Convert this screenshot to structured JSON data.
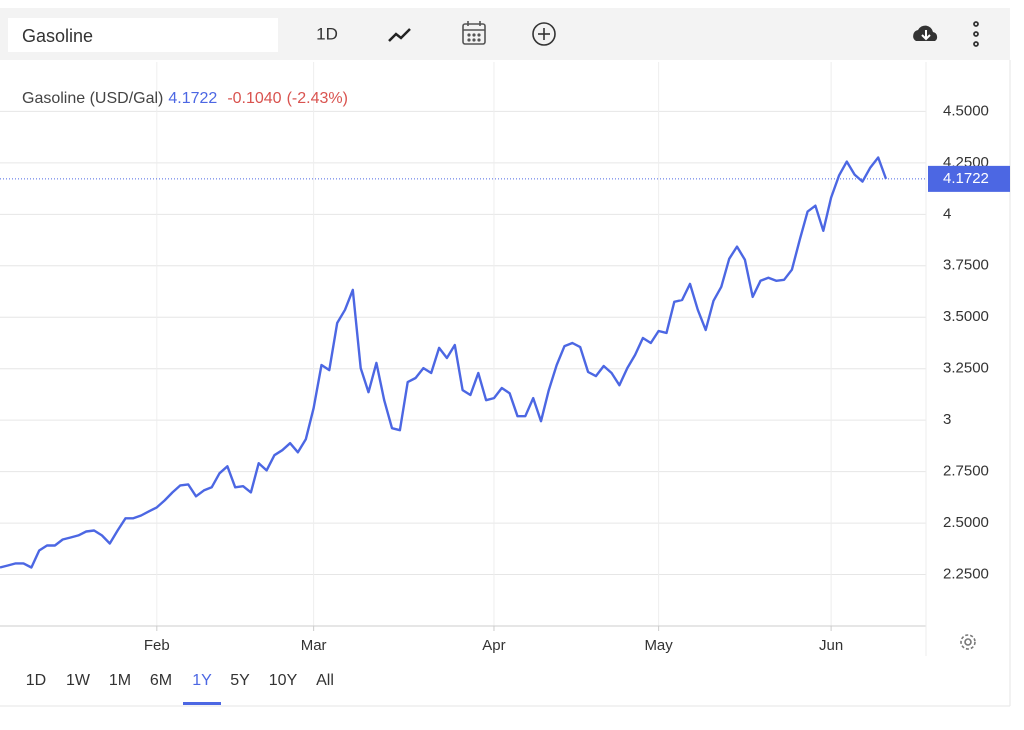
{
  "toolbar": {
    "symbol": "Gasoline",
    "interval": "1D"
  },
  "chart_data": {
    "type": "line",
    "legend_name": "Gasoline (USD/Gal)",
    "last_price": 4.1722,
    "change": {
      "value": -0.104,
      "label": "-0.1040"
    },
    "change_percent": {
      "value": -2.43,
      "label": "(-2.43%)"
    },
    "categories": [
      null,
      null,
      null,
      null,
      null,
      null,
      null,
      null,
      null,
      null,
      null,
      null,
      null,
      null,
      null,
      null,
      null,
      null,
      null,
      null,
      "Feb",
      null,
      null,
      null,
      null,
      null,
      null,
      null,
      null,
      null,
      null,
      null,
      null,
      null,
      null,
      null,
      null,
      null,
      null,
      null,
      "Mar",
      null,
      null,
      null,
      null,
      null,
      null,
      null,
      null,
      null,
      null,
      null,
      null,
      null,
      null,
      null,
      null,
      null,
      null,
      null,
      null,
      null,
      null,
      "Apr",
      null,
      null,
      null,
      null,
      null,
      null,
      null,
      null,
      null,
      null,
      null,
      null,
      null,
      null,
      null,
      null,
      null,
      null,
      null,
      null,
      "May",
      null,
      null,
      null,
      null,
      null,
      null,
      null,
      null,
      null,
      null,
      null,
      null,
      null,
      null,
      null,
      null,
      null,
      null,
      null,
      null,
      null,
      "Jun",
      null,
      null,
      null,
      null,
      null,
      null,
      null
    ],
    "series": [
      {
        "name": "Gasoline (USD/Gal)",
        "color": "#4c67e3",
        "values": [
          2.284,
          2.294,
          2.304,
          2.304,
          2.284,
          2.367,
          2.391,
          2.391,
          2.42,
          2.43,
          2.44,
          2.459,
          2.464,
          2.44,
          2.401,
          2.464,
          2.523,
          2.523,
          2.537,
          2.557,
          2.576,
          2.61,
          2.649,
          2.683,
          2.688,
          2.63,
          2.659,
          2.674,
          2.742,
          2.776,
          2.674,
          2.679,
          2.649,
          2.791,
          2.756,
          2.83,
          2.854,
          2.888,
          2.844,
          2.907,
          3.058,
          3.268,
          3.243,
          3.472,
          3.536,
          3.633,
          3.253,
          3.136,
          3.278,
          3.097,
          2.961,
          2.951,
          3.185,
          3.205,
          3.253,
          3.229,
          3.351,
          3.302,
          3.365,
          3.146,
          3.122,
          3.229,
          3.097,
          3.107,
          3.156,
          3.131,
          3.019,
          3.019,
          3.107,
          2.995,
          3.146,
          3.268,
          3.36,
          3.375,
          3.355,
          3.234,
          3.214,
          3.263,
          3.229,
          3.17,
          3.253,
          3.317,
          3.399,
          3.375,
          3.433,
          3.424,
          3.575,
          3.584,
          3.662,
          3.536,
          3.438,
          3.58,
          3.648,
          3.784,
          3.843,
          3.779,
          3.599,
          3.677,
          3.692,
          3.677,
          3.682,
          3.731,
          3.877,
          4.013,
          4.042,
          3.92,
          4.081,
          4.188,
          4.256,
          4.193,
          4.159,
          4.227,
          4.276,
          4.1722
        ]
      }
    ],
    "ylim": [
      2,
      4.74
    ],
    "yticks": [
      {
        "value": 2.25,
        "label": "2.2500"
      },
      {
        "value": 2.5,
        "label": "2.5000"
      },
      {
        "value": 2.75,
        "label": "2.7500"
      },
      3,
      {
        "value": 3.25,
        "label": "3.2500"
      },
      {
        "value": 3.5,
        "label": "3.5000"
      },
      {
        "value": 3.75,
        "label": "3.7500"
      },
      4,
      {
        "value": 4.25,
        "label": "4.2500"
      },
      {
        "value": 4.5,
        "label": "4.5000"
      }
    ],
    "grid": true,
    "change_color": "#d9534f",
    "price_tag_color": "#4c67e3"
  },
  "range_buttons": [
    "1D",
    "1W",
    "1M",
    "6M",
    "1Y",
    "5Y",
    "10Y",
    "All"
  ],
  "selected_range": 4
}
